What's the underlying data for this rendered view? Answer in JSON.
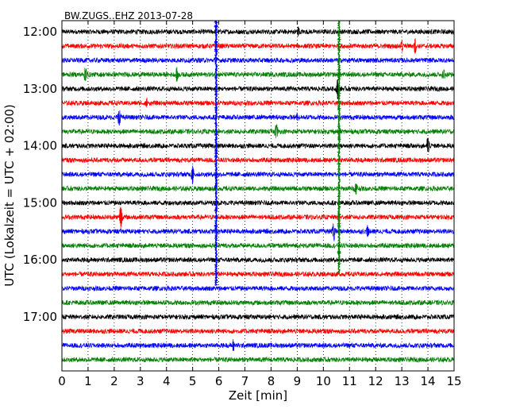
{
  "chart_data": {
    "type": "line",
    "subtype": "seismogram-dayplot",
    "title": "BW.ZUGS..EHZ 2013-07-28",
    "xlabel": "Zeit  [min]",
    "ylabel": "UTC (Lokalzeit = UTC + 02:00)",
    "xlim": [
      0,
      15
    ],
    "x_ticks": [
      0,
      1,
      2,
      3,
      4,
      5,
      6,
      7,
      8,
      9,
      10,
      11,
      12,
      13,
      14,
      15
    ],
    "grid": "vertical-dotted",
    "line_colors": [
      "#000000",
      "#ff0000",
      "#0000ff",
      "#008000"
    ],
    "y_ticks": [
      {
        "label": "12:00",
        "trace": 0
      },
      {
        "label": "13:00",
        "trace": 4
      },
      {
        "label": "14:00",
        "trace": 8
      },
      {
        "label": "15:00",
        "trace": 12
      },
      {
        "label": "16:00",
        "trace": 16
      },
      {
        "label": "17:00",
        "trace": 20
      }
    ],
    "traces": [
      {
        "start": "12:00",
        "color": "#000000",
        "noise": 0.3,
        "events": [
          {
            "x": 9.05,
            "amp": 0.5
          }
        ]
      },
      {
        "start": "12:15",
        "color": "#ff0000",
        "noise": 0.3,
        "events": [
          {
            "x": 13.0,
            "amp": 0.6
          },
          {
            "x": 13.5,
            "amp": 0.9
          }
        ]
      },
      {
        "start": "12:30",
        "color": "#0000ff",
        "noise": 0.3,
        "events": []
      },
      {
        "start": "12:45",
        "color": "#008000",
        "noise": 0.3,
        "events": [
          {
            "x": 0.9,
            "amp": 0.8
          },
          {
            "x": 4.4,
            "amp": 0.8
          },
          {
            "x": 14.6,
            "amp": 0.6
          }
        ]
      },
      {
        "start": "13:00",
        "color": "#000000",
        "noise": 0.3,
        "events": [
          {
            "x": 10.55,
            "amp": 1.3
          }
        ]
      },
      {
        "start": "13:15",
        "color": "#ff0000",
        "noise": 0.3,
        "events": [
          {
            "x": 3.25,
            "amp": 0.6
          }
        ]
      },
      {
        "start": "13:30",
        "color": "#0000ff",
        "noise": 0.3,
        "events": [
          {
            "x": 2.2,
            "amp": 1.0
          },
          {
            "x": 9.0,
            "amp": 0.5
          }
        ]
      },
      {
        "start": "13:45",
        "color": "#008000",
        "noise": 0.3,
        "events": [
          {
            "x": 8.2,
            "amp": 1.0
          }
        ]
      },
      {
        "start": "14:00",
        "color": "#000000",
        "noise": 0.3,
        "events": [
          {
            "x": 14.0,
            "amp": 1.1
          }
        ]
      },
      {
        "start": "14:15",
        "color": "#ff0000",
        "noise": 0.3,
        "events": []
      },
      {
        "start": "14:30",
        "color": "#0000ff",
        "noise": 0.3,
        "events": [
          {
            "x": 5.0,
            "amp": 1.1
          }
        ]
      },
      {
        "start": "14:45",
        "color": "#008000",
        "noise": 0.3,
        "events": [
          {
            "x": 11.25,
            "amp": 0.6
          }
        ]
      },
      {
        "start": "15:00",
        "color": "#000000",
        "noise": 0.3,
        "events": []
      },
      {
        "start": "15:15",
        "color": "#ff0000",
        "noise": 0.3,
        "events": [
          {
            "x": 2.25,
            "amp": 1.5
          }
        ]
      },
      {
        "start": "15:30",
        "color": "#0000ff",
        "noise": 0.3,
        "events": [
          {
            "x": 10.4,
            "amp": 1.1
          },
          {
            "x": 11.7,
            "amp": 0.6
          }
        ]
      },
      {
        "start": "15:45",
        "color": "#008000",
        "noise": 0.3,
        "events": []
      },
      {
        "start": "16:00",
        "color": "#000000",
        "noise": 0.3,
        "events": []
      },
      {
        "start": "16:15",
        "color": "#ff0000",
        "noise": 0.3,
        "events": []
      },
      {
        "start": "16:30",
        "color": "#0000ff",
        "noise": 0.3,
        "events": []
      },
      {
        "start": "16:45",
        "color": "#008000",
        "noise": 0.3,
        "events": []
      },
      {
        "start": "17:00",
        "color": "#000000",
        "noise": 0.3,
        "events": []
      },
      {
        "start": "17:15",
        "color": "#ff0000",
        "noise": 0.3,
        "events": []
      },
      {
        "start": "17:30",
        "color": "#0000ff",
        "noise": 0.3,
        "events": [
          {
            "x": 6.55,
            "amp": 0.6
          }
        ]
      },
      {
        "start": "17:45",
        "color": "#008000",
        "noise": 0.3,
        "events": []
      }
    ],
    "vertical_events": [
      {
        "x": 5.9,
        "color": "#0000ff",
        "from_trace": 0,
        "to_trace": 17.8
      },
      {
        "x": 10.6,
        "color": "#008000",
        "from_trace": 0,
        "to_trace": 16.9
      }
    ]
  }
}
